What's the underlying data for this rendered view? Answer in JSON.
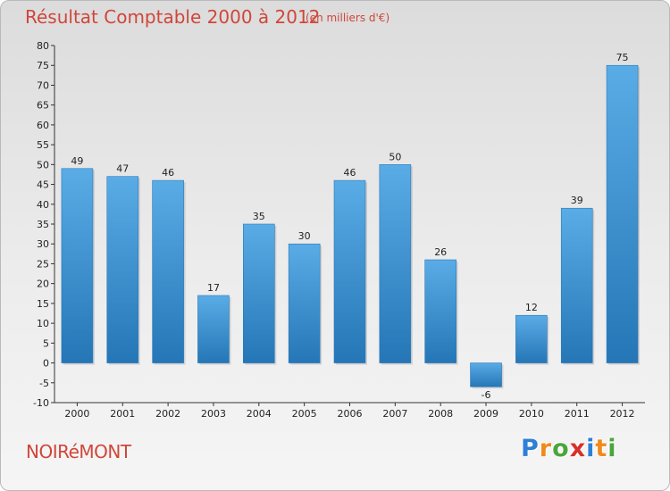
{
  "title": "Résultat Comptable 2000 à 2012",
  "subtitle": "(en milliers d'€)",
  "commune": "NOIRéMONT",
  "logo": {
    "letters": [
      "P",
      "r",
      "o",
      "x",
      "i",
      "t",
      "i"
    ],
    "colors": [
      "#2e7fd6",
      "#f08a1c",
      "#4aa63c",
      "#d6302b",
      "#2e7fd6",
      "#f08a1c",
      "#4aa63c"
    ]
  },
  "colors": {
    "bar_light": "#5aace6",
    "bar_dark": "#2576b6",
    "text": "#d0463a",
    "axis": "#333333"
  },
  "chart_data": {
    "type": "bar",
    "title": "Résultat Comptable 2000 à 2012",
    "subtitle": "(en milliers d'€)",
    "categories": [
      "2000",
      "2001",
      "2002",
      "2003",
      "2004",
      "2005",
      "2006",
      "2007",
      "2008",
      "2009",
      "2010",
      "2011",
      "2012"
    ],
    "values": [
      49,
      47,
      46,
      17,
      35,
      30,
      46,
      50,
      26,
      -6,
      12,
      39,
      75
    ],
    "ylim": [
      -10,
      80
    ],
    "yticks": [
      -10,
      -5,
      0,
      5,
      10,
      15,
      20,
      25,
      30,
      35,
      40,
      45,
      50,
      55,
      60,
      65,
      70,
      75,
      80
    ],
    "xlabel": "",
    "ylabel": "",
    "grid": false,
    "legend": "none"
  }
}
